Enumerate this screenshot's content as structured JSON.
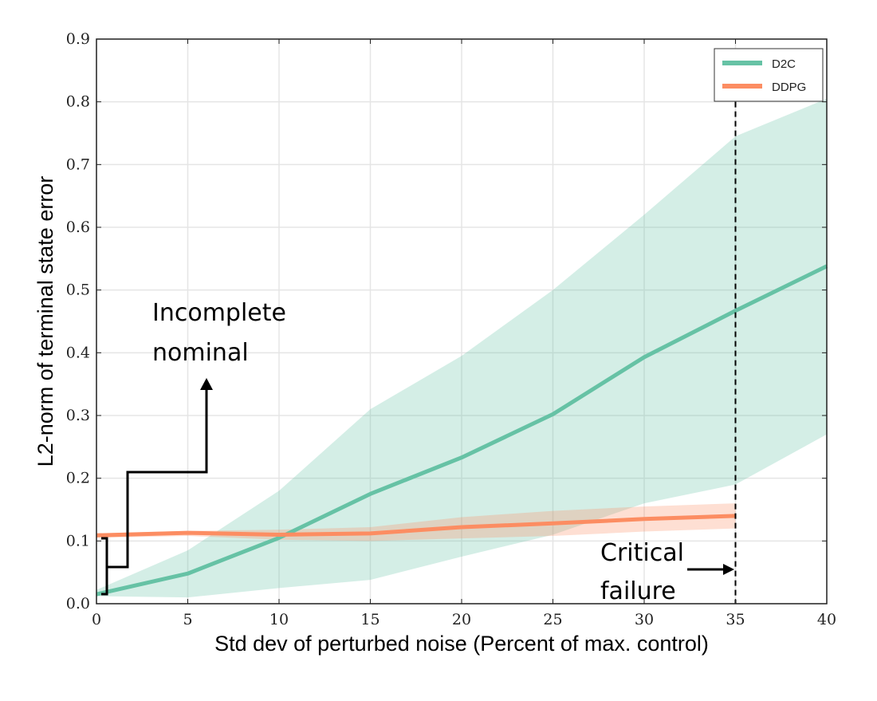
{
  "chart_data": {
    "type": "line",
    "title": "",
    "xlabel": "Std dev of perturbed noise (Percent of max. control)",
    "ylabel": "L2-norm of terminal state error",
    "xlim": [
      0,
      40
    ],
    "ylim": [
      0,
      0.9
    ],
    "xticks": [
      "0",
      "5",
      "10",
      "15",
      "20",
      "25",
      "30",
      "35",
      "40"
    ],
    "yticks": [
      "0.0",
      "0.1",
      "0.2",
      "0.3",
      "0.4",
      "0.5",
      "0.6",
      "0.7",
      "0.8",
      "0.9"
    ],
    "grid": true,
    "legend_position": "top-right",
    "series": [
      {
        "name": "D2C",
        "color": "#66c2a5",
        "band_color": "#66c2a5",
        "x": [
          0,
          5,
          10,
          15,
          20,
          25,
          30,
          35,
          40
        ],
        "mean": [
          0.015,
          0.048,
          0.105,
          0.175,
          0.233,
          0.302,
          0.393,
          0.467,
          0.538
        ],
        "upper": [
          0.022,
          0.085,
          0.18,
          0.31,
          0.395,
          0.5,
          0.62,
          0.745,
          0.805
        ],
        "lower": [
          0.012,
          0.01,
          0.025,
          0.038,
          0.075,
          0.11,
          0.16,
          0.19,
          0.27
        ]
      },
      {
        "name": "DDPG",
        "color": "#fc8d62",
        "band_color": "#fc8d62",
        "x": [
          0,
          5,
          10,
          15,
          20,
          25,
          30,
          35
        ],
        "mean": [
          0.109,
          0.113,
          0.11,
          0.112,
          0.122,
          0.128,
          0.135,
          0.14
        ],
        "upper": [
          0.112,
          0.116,
          0.118,
          0.122,
          0.138,
          0.148,
          0.155,
          0.16
        ],
        "lower": [
          0.105,
          0.108,
          0.102,
          0.1,
          0.104,
          0.108,
          0.115,
          0.12
        ]
      }
    ],
    "annotations": [
      {
        "name": "incomplete-nominal",
        "lines": [
          "Incomplete",
          "nominal"
        ]
      },
      {
        "name": "critical-failure",
        "lines": [
          "Critical",
          "failure"
        ],
        "marker_x": 35
      }
    ]
  }
}
